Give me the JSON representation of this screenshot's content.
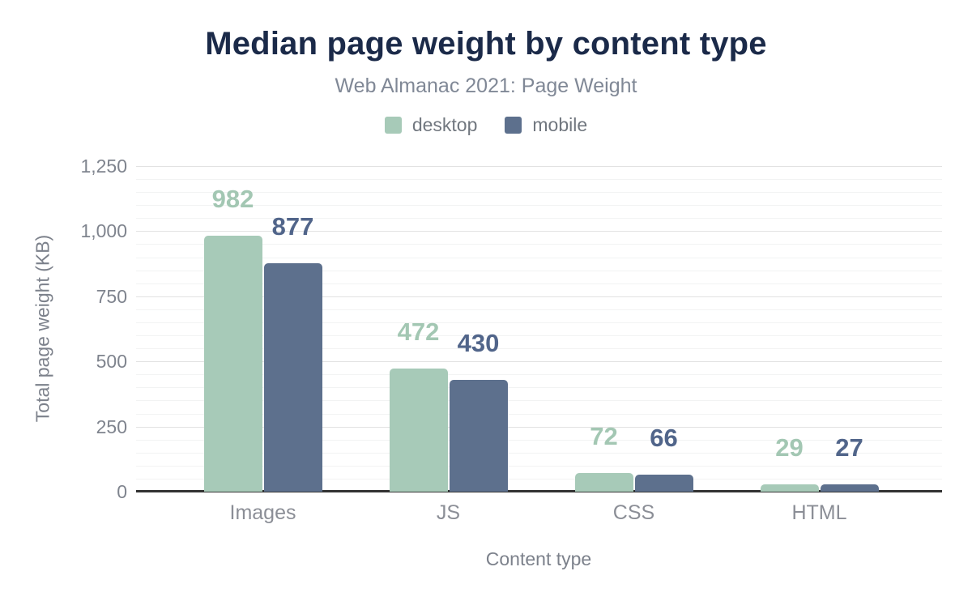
{
  "page": {
    "background": "#ffffff"
  },
  "chart_data": {
    "type": "bar",
    "title": "Median page weight by content type",
    "subtitle": "Web Almanac 2021: Page Weight",
    "categories": [
      "Images",
      "JS",
      "CSS",
      "HTML"
    ],
    "series": [
      {
        "name": "desktop",
        "color": "#a7cab8",
        "label_color": "#a3c7b3",
        "values": [
          982,
          472,
          72,
          29
        ]
      },
      {
        "name": "mobile",
        "color": "#5d708d",
        "label_color": "#51658a",
        "values": [
          877,
          430,
          66,
          27
        ]
      }
    ],
    "xlabel": "Content type",
    "ylabel": "Total page weight (KB)",
    "ylim": [
      0,
      1250
    ],
    "yticks": [
      {
        "value": 0,
        "label": "0"
      },
      {
        "value": 250,
        "label": "250"
      },
      {
        "value": 500,
        "label": "500"
      },
      {
        "value": 750,
        "label": "750"
      },
      {
        "value": 1000,
        "label": "1,000"
      },
      {
        "value": 1250,
        "label": "1,250"
      }
    ],
    "major_gridline_interval": 250,
    "minor_gridline_interval": 50,
    "grid": true,
    "legend_position": "top",
    "annotations": "value labels above each bar",
    "colors": {
      "title": "#1b2a49",
      "subtitle": "#808896",
      "axis_text": "#7f848e",
      "category_text": "#8b8e96",
      "legend_text": "#71777f",
      "major_gridline": "#e2e2e2",
      "minor_gridline": "#f2f3f3",
      "baseline": "#333333"
    }
  }
}
